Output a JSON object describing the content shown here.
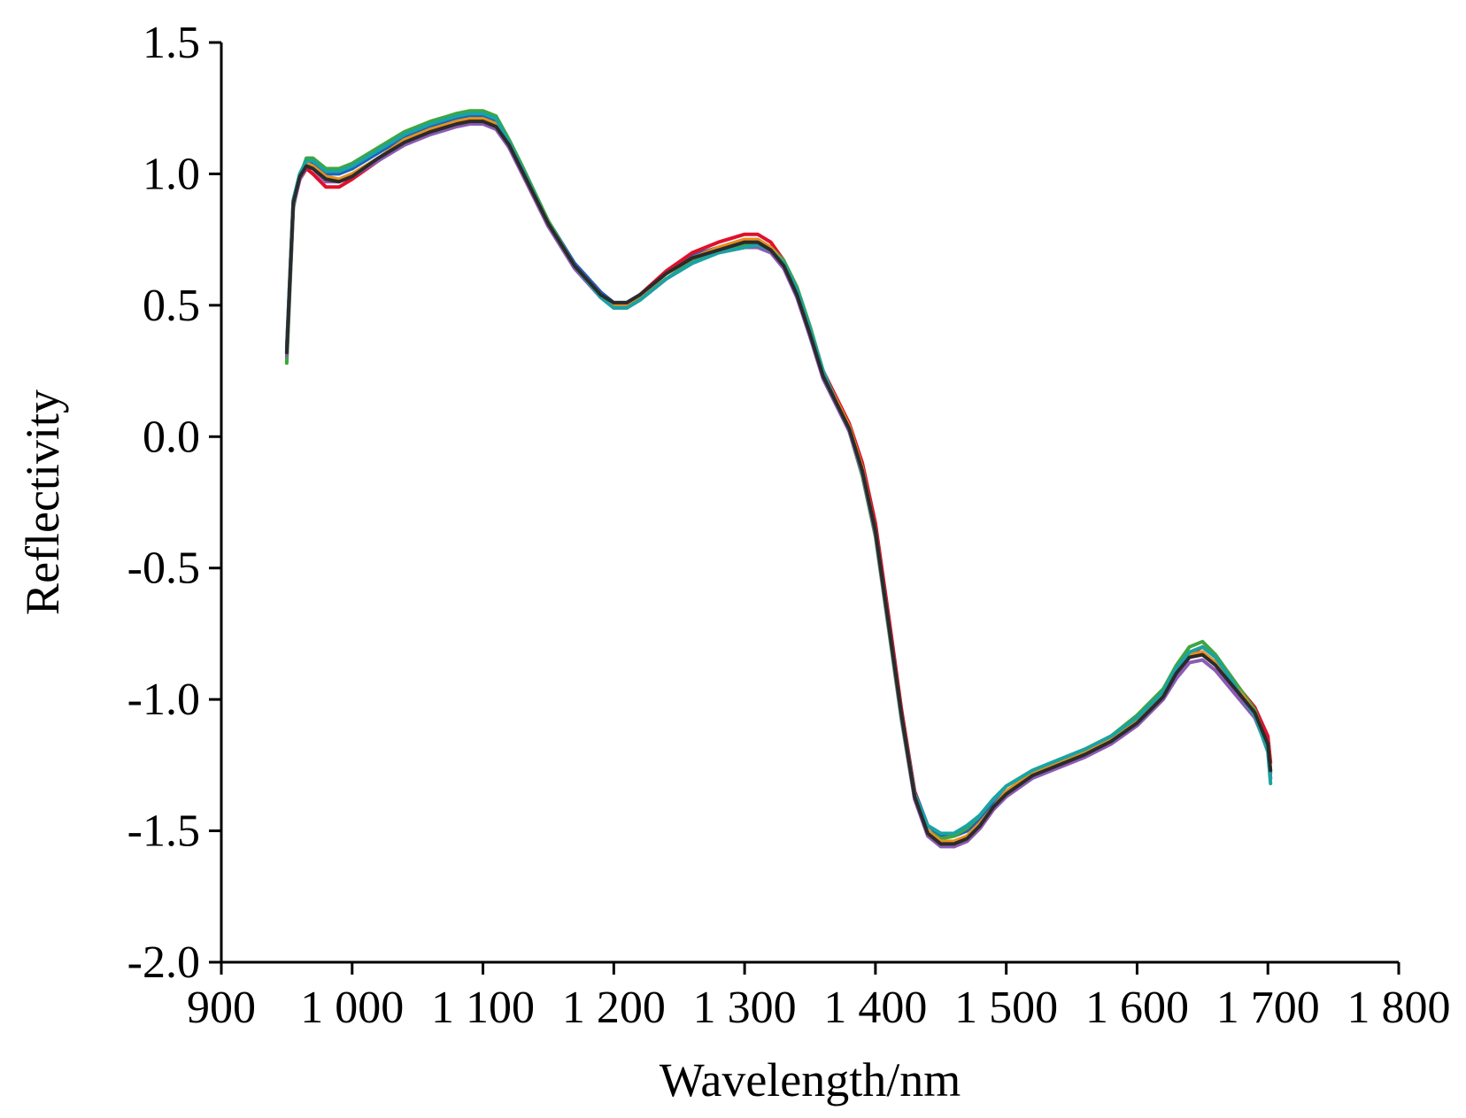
{
  "chart_data": {
    "type": "line",
    "xlabel": "Wavelength/nm",
    "ylabel": "Reflectivity",
    "xlim": [
      900,
      1800
    ],
    "ylim": [
      -2.0,
      1.5
    ],
    "x_ticks": [
      900,
      1000,
      1100,
      1200,
      1300,
      1400,
      1500,
      1600,
      1700,
      1800
    ],
    "x_tick_labels": [
      "900",
      "1 000",
      "1 100",
      "1 200",
      "1 300",
      "1 400",
      "1 500",
      "1 600",
      "1 700",
      "1 800"
    ],
    "y_ticks": [
      1.5,
      1.0,
      0.5,
      0.0,
      -0.5,
      -1.0,
      -1.5,
      -2.0
    ],
    "y_tick_labels": [
      "1.5",
      "1.0",
      "0.5",
      "0.0",
      "-0.5",
      "-1.0",
      "-1.5",
      "-2.0"
    ],
    "grid": false,
    "legend": "none",
    "x": [
      950,
      955,
      960,
      965,
      970,
      980,
      990,
      1000,
      1020,
      1040,
      1060,
      1080,
      1090,
      1100,
      1110,
      1120,
      1130,
      1150,
      1170,
      1190,
      1200,
      1210,
      1220,
      1240,
      1260,
      1280,
      1300,
      1310,
      1320,
      1330,
      1340,
      1350,
      1360,
      1370,
      1380,
      1390,
      1400,
      1410,
      1420,
      1430,
      1440,
      1450,
      1460,
      1470,
      1480,
      1490,
      1500,
      1520,
      1540,
      1560,
      1580,
      1600,
      1620,
      1630,
      1640,
      1650,
      1660,
      1670,
      1680,
      1690,
      1700,
      1702
    ],
    "series": [
      {
        "color": "#1f5fbf",
        "values": [
          0.34,
          0.9,
          1.0,
          1.05,
          1.04,
          1.0,
          1.0,
          1.02,
          1.08,
          1.14,
          1.18,
          1.21,
          1.22,
          1.22,
          1.2,
          1.12,
          1.02,
          0.82,
          0.66,
          0.55,
          0.51,
          0.51,
          0.54,
          0.62,
          0.69,
          0.72,
          0.75,
          0.75,
          0.72,
          0.66,
          0.55,
          0.4,
          0.24,
          0.14,
          0.04,
          -0.12,
          -0.35,
          -0.7,
          -1.05,
          -1.35,
          -1.48,
          -1.52,
          -1.52,
          -1.5,
          -1.46,
          -1.4,
          -1.35,
          -1.28,
          -1.24,
          -1.2,
          -1.15,
          -1.08,
          -0.98,
          -0.9,
          -0.84,
          -0.82,
          -0.86,
          -0.92,
          -0.98,
          -1.04,
          -1.16,
          -1.28
        ]
      },
      {
        "color": "#e0102b",
        "values": [
          0.3,
          0.88,
          0.98,
          1.02,
          1.0,
          0.95,
          0.95,
          0.98,
          1.05,
          1.12,
          1.16,
          1.19,
          1.2,
          1.2,
          1.18,
          1.1,
          1.0,
          0.8,
          0.65,
          0.54,
          0.5,
          0.5,
          0.54,
          0.63,
          0.7,
          0.74,
          0.77,
          0.77,
          0.74,
          0.67,
          0.56,
          0.41,
          0.25,
          0.15,
          0.05,
          -0.1,
          -0.33,
          -0.68,
          -1.04,
          -1.35,
          -1.5,
          -1.55,
          -1.56,
          -1.54,
          -1.49,
          -1.42,
          -1.36,
          -1.29,
          -1.25,
          -1.21,
          -1.16,
          -1.09,
          -0.99,
          -0.9,
          -0.83,
          -0.8,
          -0.84,
          -0.9,
          -0.97,
          -1.03,
          -1.14,
          -1.24
        ]
      },
      {
        "color": "#3fa63f",
        "values": [
          0.28,
          0.87,
          0.99,
          1.06,
          1.06,
          1.02,
          1.02,
          1.04,
          1.1,
          1.16,
          1.2,
          1.23,
          1.24,
          1.24,
          1.22,
          1.13,
          1.03,
          0.82,
          0.65,
          0.53,
          0.49,
          0.49,
          0.52,
          0.6,
          0.67,
          0.7,
          0.73,
          0.74,
          0.72,
          0.67,
          0.57,
          0.42,
          0.25,
          0.13,
          0.02,
          -0.15,
          -0.38,
          -0.73,
          -1.08,
          -1.38,
          -1.5,
          -1.53,
          -1.52,
          -1.49,
          -1.44,
          -1.38,
          -1.33,
          -1.27,
          -1.23,
          -1.19,
          -1.14,
          -1.06,
          -0.96,
          -0.87,
          -0.8,
          -0.78,
          -0.83,
          -0.9,
          -0.97,
          -1.04,
          -1.18,
          -1.3
        ]
      },
      {
        "color": "#e8901c",
        "values": [
          0.32,
          0.89,
          0.99,
          1.04,
          1.03,
          0.99,
          0.98,
          1.0,
          1.06,
          1.13,
          1.17,
          1.2,
          1.21,
          1.21,
          1.19,
          1.11,
          1.01,
          0.81,
          0.65,
          0.54,
          0.5,
          0.5,
          0.53,
          0.62,
          0.68,
          0.72,
          0.75,
          0.75,
          0.72,
          0.66,
          0.55,
          0.4,
          0.24,
          0.14,
          0.04,
          -0.12,
          -0.36,
          -0.71,
          -1.06,
          -1.37,
          -1.5,
          -1.54,
          -1.54,
          -1.52,
          -1.47,
          -1.41,
          -1.35,
          -1.28,
          -1.24,
          -1.2,
          -1.15,
          -1.08,
          -0.98,
          -0.89,
          -0.83,
          -0.82,
          -0.86,
          -0.92,
          -0.98,
          -1.05,
          -1.17,
          -1.27
        ]
      },
      {
        "color": "#8c5bb5",
        "values": [
          0.31,
          0.88,
          0.98,
          1.03,
          1.02,
          0.97,
          0.97,
          0.99,
          1.05,
          1.11,
          1.15,
          1.18,
          1.19,
          1.19,
          1.17,
          1.1,
          1.0,
          0.8,
          0.64,
          0.53,
          0.49,
          0.49,
          0.52,
          0.6,
          0.66,
          0.7,
          0.72,
          0.72,
          0.7,
          0.64,
          0.53,
          0.38,
          0.22,
          0.12,
          0.02,
          -0.14,
          -0.37,
          -0.72,
          -1.07,
          -1.38,
          -1.52,
          -1.56,
          -1.56,
          -1.54,
          -1.49,
          -1.42,
          -1.37,
          -1.3,
          -1.26,
          -1.22,
          -1.17,
          -1.1,
          -1.0,
          -0.92,
          -0.86,
          -0.85,
          -0.89,
          -0.95,
          -1.01,
          -1.07,
          -1.19,
          -1.3
        ]
      },
      {
        "color": "#1aa3a3",
        "values": [
          0.33,
          0.9,
          1.0,
          1.05,
          1.05,
          1.01,
          1.01,
          1.03,
          1.09,
          1.15,
          1.19,
          1.22,
          1.23,
          1.23,
          1.21,
          1.12,
          1.02,
          0.81,
          0.65,
          0.53,
          0.49,
          0.49,
          0.52,
          0.6,
          0.66,
          0.7,
          0.72,
          0.73,
          0.71,
          0.66,
          0.56,
          0.41,
          0.25,
          0.13,
          0.03,
          -0.13,
          -0.36,
          -0.71,
          -1.06,
          -1.36,
          -1.48,
          -1.51,
          -1.51,
          -1.48,
          -1.44,
          -1.38,
          -1.33,
          -1.27,
          -1.23,
          -1.19,
          -1.14,
          -1.07,
          -0.97,
          -0.88,
          -0.82,
          -0.8,
          -0.84,
          -0.91,
          -0.99,
          -1.06,
          -1.2,
          -1.32
        ]
      },
      {
        "color": "#2b2b2b",
        "values": [
          0.32,
          0.89,
          0.99,
          1.03,
          1.02,
          0.98,
          0.97,
          0.99,
          1.06,
          1.12,
          1.16,
          1.19,
          1.2,
          1.2,
          1.18,
          1.11,
          1.01,
          0.81,
          0.65,
          0.54,
          0.51,
          0.51,
          0.54,
          0.62,
          0.68,
          0.71,
          0.74,
          0.74,
          0.71,
          0.65,
          0.54,
          0.39,
          0.23,
          0.13,
          0.03,
          -0.13,
          -0.36,
          -0.71,
          -1.06,
          -1.37,
          -1.51,
          -1.55,
          -1.55,
          -1.53,
          -1.48,
          -1.41,
          -1.36,
          -1.29,
          -1.25,
          -1.21,
          -1.16,
          -1.09,
          -0.99,
          -0.9,
          -0.84,
          -0.83,
          -0.87,
          -0.93,
          -0.99,
          -1.05,
          -1.17,
          -1.27
        ]
      }
    ]
  }
}
